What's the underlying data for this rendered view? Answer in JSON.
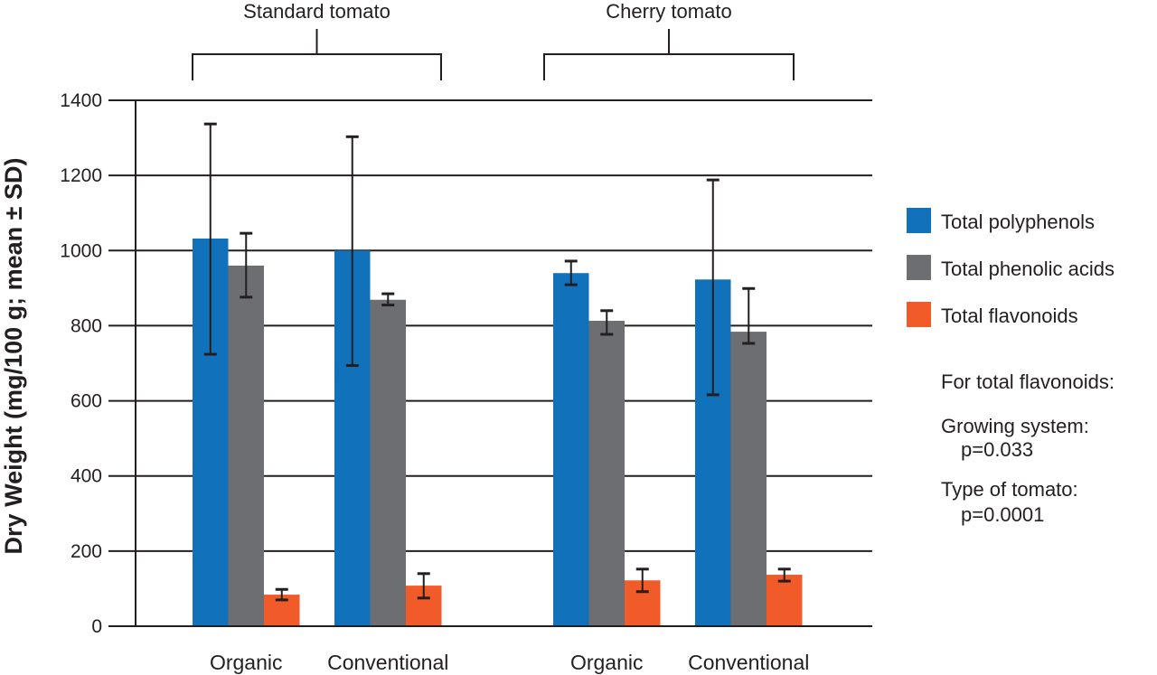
{
  "chart_data": {
    "type": "bar",
    "title": "",
    "xlabel": "",
    "ylabel": "Dry Weight (mg/100 g; mean ± SD)",
    "ylim": [
      0,
      1400
    ],
    "yticks": [
      0,
      200,
      400,
      600,
      800,
      1000,
      1200,
      1400
    ],
    "grid": true,
    "legend_position": "right",
    "groups": [
      {
        "label": "Standard tomato",
        "categories": [
          "Organic",
          "Conventional"
        ]
      },
      {
        "label": "Cherry tomato",
        "categories": [
          "Organic",
          "Conventional"
        ]
      }
    ],
    "categories": [
      "Organic",
      "Conventional",
      "Organic",
      "Conventional"
    ],
    "series": [
      {
        "name": "Total polyphenols",
        "color": "#1172bb",
        "values": [
          1032,
          1000,
          940,
          923
        ],
        "sd_low": [
          724,
          694,
          909,
          616
        ],
        "sd_high": [
          1337,
          1303,
          972,
          1188
        ]
      },
      {
        "name": "Total phenolic acids",
        "color": "#6d6e71",
        "values": [
          960,
          869,
          813,
          784
        ],
        "sd_low": [
          876,
          855,
          777,
          753
        ],
        "sd_high": [
          1046,
          885,
          840,
          899
        ]
      },
      {
        "name": "Total flavonoids",
        "color": "#f15a29",
        "values": [
          84,
          108,
          122,
          137
        ],
        "sd_low": [
          70,
          75,
          92,
          120
        ],
        "sd_high": [
          98,
          140,
          152,
          152
        ]
      }
    ],
    "annotations": {
      "heading": "For total flavonoids:",
      "items": [
        {
          "label": "Growing system:",
          "value": "p=0.033"
        },
        {
          "label": "Type of tomato:",
          "value": "p=0.0001"
        }
      ]
    }
  }
}
